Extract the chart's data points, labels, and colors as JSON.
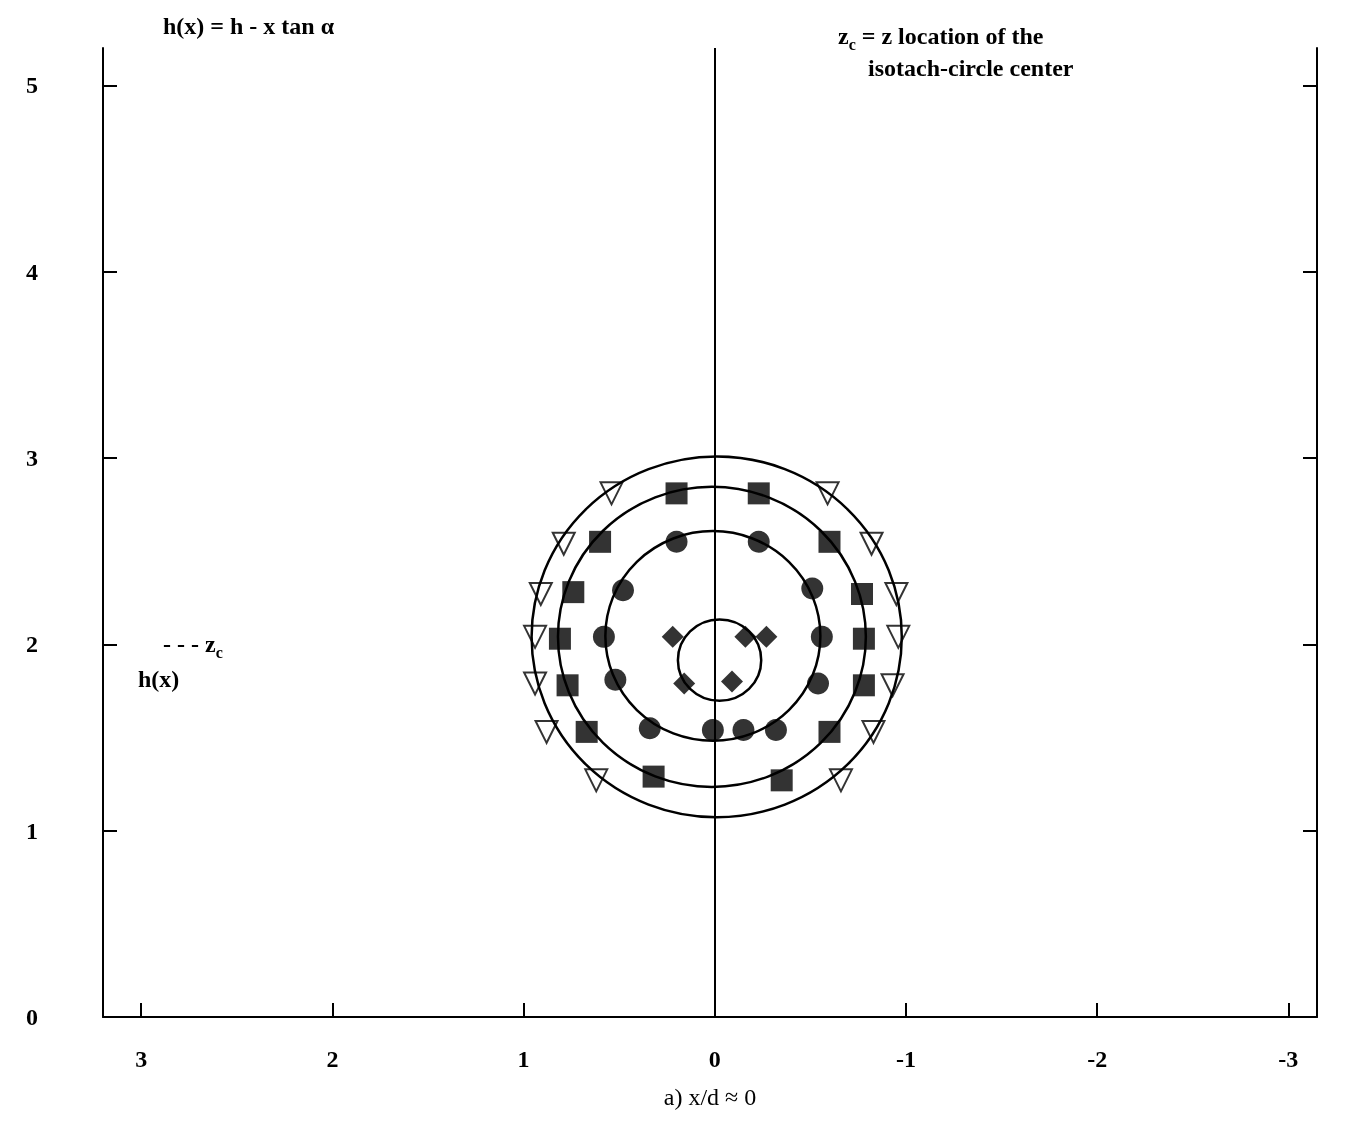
{
  "chart_data": {
    "type": "scatter",
    "xlabel": "a) x/d ≈ 0",
    "xlim": [
      3.2,
      -3.15
    ],
    "xticks": [
      3,
      2,
      1,
      0,
      -1,
      -2,
      -3
    ],
    "ylim": [
      0,
      5.2
    ],
    "yticks": [
      0,
      1,
      2,
      3,
      4,
      5
    ],
    "annotations": [
      "h(x) = h - x tan α",
      "z$_{c}$ = z location of the\n     isotach-circle center",
      "h(x)",
      "- - - z$_{c}$"
    ],
    "ref_lines": [
      {
        "axis": "x",
        "value": 0,
        "color": "#000000"
      }
    ],
    "series": [
      {
        "marker": "triangle",
        "color": "#000000",
        "x": [
          0.54,
          0.79,
          0.91,
          0.94,
          0.94,
          0.88,
          0.62,
          -0.59,
          -0.82,
          -0.95,
          -0.96,
          -0.93,
          -0.83,
          -0.66
        ],
        "values": [
          2.81,
          2.54,
          2.27,
          2.04,
          1.79,
          1.53,
          1.27,
          2.81,
          2.54,
          2.27,
          2.04,
          1.78,
          1.53,
          1.27
        ]
      },
      {
        "marker": "square",
        "color": "#000000",
        "x": [
          0.2,
          -0.23,
          0.6,
          -0.6,
          0.74,
          -0.77,
          0.81,
          -0.78,
          0.77,
          -0.78,
          0.67,
          -0.6,
          0.32,
          -0.35
        ],
        "values": [
          2.81,
          2.81,
          2.55,
          2.55,
          2.28,
          2.27,
          2.03,
          2.03,
          1.78,
          1.78,
          1.53,
          1.53,
          1.29,
          1.27
        ]
      },
      {
        "marker": "circle",
        "color": "#000000",
        "x": [
          0.2,
          -0.23,
          0.48,
          -0.51,
          0.58,
          -0.56,
          0.52,
          -0.54,
          0.34,
          0.01,
          -0.15,
          -0.32
        ],
        "values": [
          2.55,
          2.55,
          2.29,
          2.3,
          2.04,
          2.04,
          1.81,
          1.79,
          1.55,
          1.54,
          1.54,
          1.54
        ]
      },
      {
        "marker": "diamond",
        "color": "#000000",
        "x": [
          0.22,
          -0.16,
          -0.27,
          0.16,
          -0.09
        ],
        "values": [
          2.04,
          2.04,
          2.04,
          1.79,
          1.8
        ]
      }
    ]
  }
}
